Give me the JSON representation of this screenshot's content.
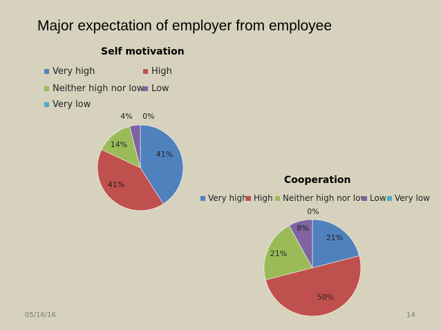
{
  "slide": {
    "title": "Major expectation of employer from employee",
    "date": "05/16/16",
    "page_number": "14"
  },
  "chart_data": [
    {
      "type": "pie",
      "title": "Self motivation",
      "categories": [
        "Very high",
        "High",
        "Neither high nor low",
        "Low",
        "Very low"
      ],
      "values": [
        41,
        41,
        14,
        4,
        0
      ],
      "labels": [
        "41%",
        "41%",
        "14%",
        "4%",
        "0%"
      ],
      "colors": [
        "#4f81bd",
        "#c0504d",
        "#9bbb59",
        "#8064a2",
        "#4bacc6"
      ],
      "legend_position": "top"
    },
    {
      "type": "pie",
      "title": "Cooperation",
      "categories": [
        "Very high",
        "High",
        "Neither high nor low",
        "Low",
        "Very low"
      ],
      "values": [
        21,
        50,
        21,
        8,
        0
      ],
      "labels": [
        "21%",
        "50%",
        "21%",
        "8%",
        "0%"
      ],
      "colors": [
        "#4f81bd",
        "#c0504d",
        "#9bbb59",
        "#8064a2",
        "#4bacc6"
      ],
      "legend_position": "top"
    }
  ]
}
